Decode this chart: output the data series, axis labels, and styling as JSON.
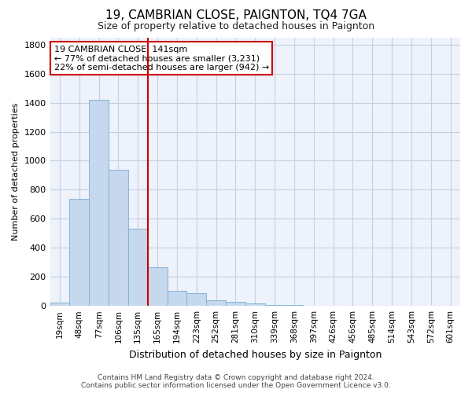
{
  "title": "19, CAMBRIAN CLOSE, PAIGNTON, TQ4 7GA",
  "subtitle": "Size of property relative to detached houses in Paignton",
  "xlabel": "Distribution of detached houses by size in Paignton",
  "ylabel": "Number of detached properties",
  "footer_line1": "Contains HM Land Registry data © Crown copyright and database right 2024.",
  "footer_line2": "Contains public sector information licensed under the Open Government Licence v3.0.",
  "bin_labels": [
    "19sqm",
    "48sqm",
    "77sqm",
    "106sqm",
    "135sqm",
    "165sqm",
    "194sqm",
    "223sqm",
    "252sqm",
    "281sqm",
    "310sqm",
    "339sqm",
    "368sqm",
    "397sqm",
    "426sqm",
    "456sqm",
    "485sqm",
    "514sqm",
    "543sqm",
    "572sqm",
    "601sqm"
  ],
  "bar_values": [
    22,
    740,
    1420,
    940,
    530,
    265,
    105,
    90,
    38,
    28,
    15,
    8,
    5,
    3,
    2,
    2,
    1,
    1,
    1,
    1,
    1
  ],
  "bar_color": "#c5d8ee",
  "bar_edgecolor": "#7badd4",
  "grid_color": "#c8cfe0",
  "bg_color": "#edf2fb",
  "annotation_text": "19 CAMBRIAN CLOSE: 141sqm\n← 77% of detached houses are smaller (3,231)\n22% of semi-detached houses are larger (942) →",
  "vline_color": "#cc0000",
  "annotation_box_color": "#ffffff",
  "annotation_box_edgecolor": "#cc0000",
  "ylim": [
    0,
    1850
  ],
  "yticks": [
    0,
    200,
    400,
    600,
    800,
    1000,
    1200,
    1400,
    1600,
    1800
  ],
  "title_fontsize": 11,
  "subtitle_fontsize": 9,
  "ylabel_fontsize": 8,
  "xlabel_fontsize": 9
}
